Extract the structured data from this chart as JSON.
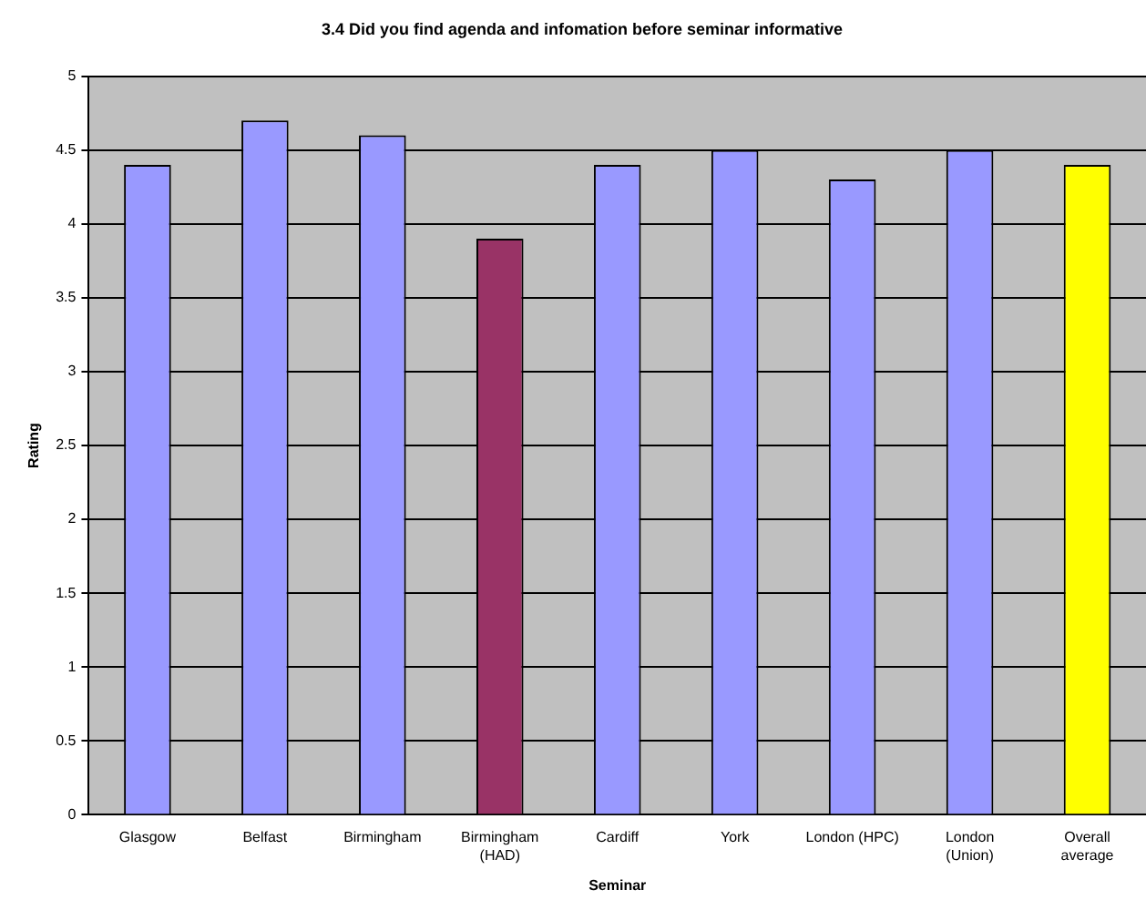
{
  "chart_data": {
    "type": "bar",
    "title": "3.4 Did you find agenda and infomation before seminar informative",
    "xlabel": "Seminar",
    "ylabel": "Rating",
    "categories": [
      "Glasgow",
      "Belfast",
      "Birmingham",
      "Birmingham\n(HAD)",
      "Cardiff",
      "York",
      "London (HPC)",
      "London\n(Union)",
      "Overall\naverage"
    ],
    "values": [
      4.4,
      4.7,
      4.6,
      3.9,
      4.4,
      4.5,
      4.3,
      4.5,
      4.4
    ],
    "colors": [
      "#9999ff",
      "#9999ff",
      "#9999ff",
      "#993366",
      "#9999ff",
      "#9999ff",
      "#9999ff",
      "#9999ff",
      "#ffff00"
    ],
    "ylim": [
      0,
      5
    ],
    "yticks": [
      0,
      0.5,
      1,
      1.5,
      2,
      2.5,
      3,
      3.5,
      4,
      4.5,
      5
    ],
    "grid": "y",
    "legend": false
  }
}
